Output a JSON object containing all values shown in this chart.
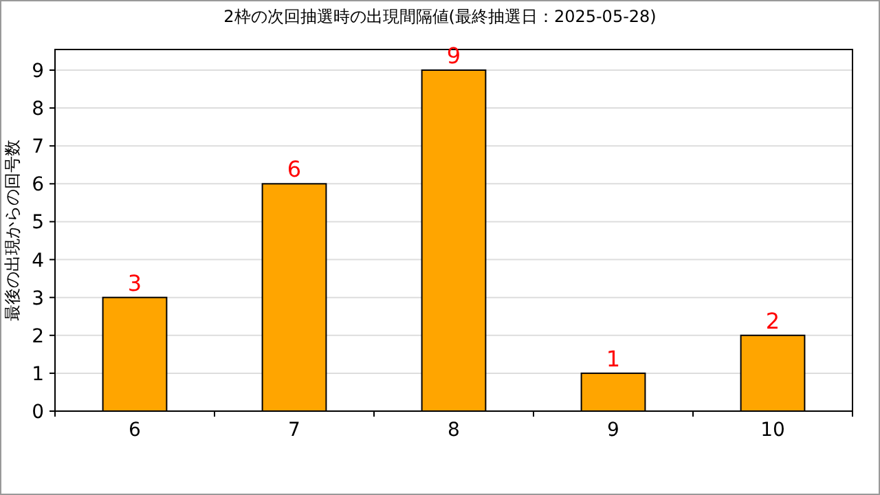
{
  "chart_data": {
    "type": "bar",
    "title": "2枠の次回抽選時の出現間隔値(最終抽選日：2025-05-28)",
    "ylabel": "最後の出現からの回号数",
    "categories": [
      "6",
      "7",
      "8",
      "9",
      "10"
    ],
    "values": [
      3,
      6,
      9,
      1,
      2
    ],
    "color": "#ffa500",
    "ylim": [
      0,
      9
    ],
    "yticks": [
      0,
      1,
      2,
      3,
      4,
      5,
      6,
      7,
      8,
      9
    ],
    "grid": "y",
    "data_labels": true
  }
}
